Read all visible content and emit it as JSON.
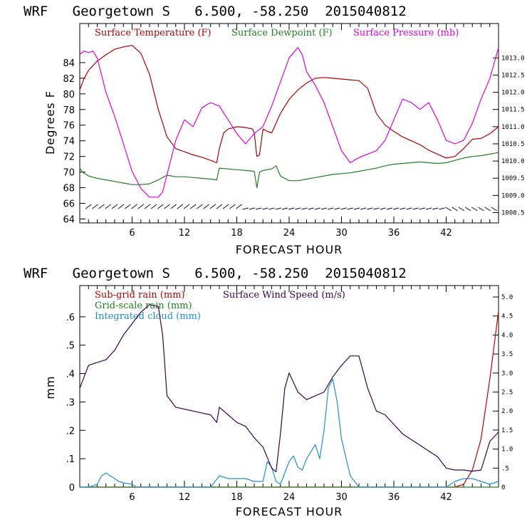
{
  "chart_data": [
    {
      "type": "line",
      "title": "WRF   Georgetown S   6.500, -58.250  2015040812",
      "xlabel": "FORECAST HOUR",
      "ylabel": "Degrees F",
      "xlim": [
        0,
        48
      ],
      "ylim": [
        63.5,
        89
      ],
      "y2lim": [
        1008.2,
        1014
      ],
      "x_ticks": [
        6,
        12,
        18,
        24,
        30,
        36,
        42
      ],
      "y_ticks": [
        64,
        66,
        68,
        70,
        72,
        74,
        76,
        78,
        80,
        82,
        84
      ],
      "y2_ticks": [
        1008.5,
        1009.0,
        1009.5,
        1010.0,
        1010.5,
        1011.0,
        1011.5,
        1012.0,
        1012.5,
        1013.0
      ],
      "y2_tick_labels": [
        "1008.5",
        "1009.0",
        "1009.5",
        "1010.0",
        "1010.5",
        "1011.0",
        "1011.5",
        "1012.0",
        "1012.5",
        "1013.0"
      ],
      "legend": "top",
      "series": [
        {
          "name": "Surface Temperature (F)",
          "color": "#b00000",
          "axis": "left",
          "x": [
            0,
            0.5,
            1,
            2,
            3,
            4,
            5,
            6,
            7,
            8,
            9,
            10,
            11,
            12,
            13,
            14,
            15,
            15.7,
            16,
            16.5,
            17,
            18,
            19,
            19.8,
            20,
            20.3,
            20.6,
            21,
            21.5,
            22,
            23,
            24,
            25,
            26,
            27,
            28,
            29,
            30,
            31,
            32,
            33,
            34,
            35,
            36,
            37,
            38,
            39,
            40,
            41,
            42,
            43,
            44,
            45,
            46,
            47,
            48
          ],
          "y": [
            80.5,
            82,
            83,
            84.2,
            85,
            85.7,
            86,
            86.2,
            85.2,
            82.5,
            78,
            74.5,
            73,
            72.6,
            72.2,
            71.9,
            71.5,
            71.2,
            73,
            75,
            75.5,
            75.8,
            75.7,
            75.5,
            75,
            72,
            72.2,
            75.5,
            75.2,
            75,
            77.5,
            79.3,
            80.5,
            81.4,
            82,
            82.1,
            82,
            81.9,
            81.8,
            81.7,
            80.7,
            77.5,
            76,
            75.2,
            74.5,
            74,
            73.5,
            72.8,
            72.3,
            71.8,
            72,
            73,
            74.2,
            74.3,
            74.9,
            75.8
          ]
        },
        {
          "name": "Surface Dewpoint (F)",
          "color": "#208020",
          "axis": "left",
          "x": [
            0,
            0.3,
            1,
            2,
            3,
            4,
            5,
            6,
            7,
            8,
            9,
            9.5,
            10,
            11,
            12,
            13,
            14,
            15,
            15.7,
            16,
            17,
            18,
            19,
            20,
            20.3,
            20.6,
            21,
            22,
            22.5,
            23,
            24,
            25,
            26,
            27,
            28,
            29,
            30,
            31,
            32,
            33,
            34,
            35,
            36,
            37,
            38,
            39,
            40,
            41,
            42,
            43,
            44,
            45,
            46,
            47,
            48
          ],
          "y": [
            70.5,
            70,
            69.5,
            69.2,
            69,
            68.8,
            68.6,
            68.4,
            68.4,
            68.5,
            69,
            69.3,
            69.6,
            69.4,
            69.4,
            69.3,
            69.2,
            69.1,
            69.0,
            70.5,
            70.4,
            70.3,
            70.2,
            70.1,
            68,
            70,
            70.2,
            70.4,
            70.8,
            69.5,
            68.9,
            68.9,
            69.1,
            69.3,
            69.5,
            69.7,
            69.8,
            69.9,
            70.1,
            70.3,
            70.5,
            70.8,
            71,
            71.1,
            71.2,
            71.3,
            71.2,
            71.1,
            71.2,
            71.5,
            71.8,
            72.0,
            72.1,
            72.3,
            72.5
          ]
        },
        {
          "name": "Surface Pressure (mb)",
          "color": "#e000e0",
          "axis": "right",
          "x": [
            0,
            0.5,
            1,
            1.5,
            2,
            2.5,
            3,
            4,
            5,
            6,
            7,
            8,
            9,
            9.5,
            10,
            11,
            12,
            13,
            14,
            15,
            16,
            17,
            18,
            19,
            20,
            20.5,
            21,
            22,
            23,
            24,
            25,
            25.5,
            26,
            27,
            28,
            29,
            30,
            31,
            32,
            33,
            34,
            35,
            36,
            37,
            38,
            39,
            40,
            41,
            42,
            43,
            44,
            45,
            46,
            47,
            48
          ],
          "y": [
            1013.1,
            1013.2,
            1013.15,
            1013.2,
            1013.0,
            1012.5,
            1012.0,
            1011.3,
            1010.5,
            1009.7,
            1009.2,
            1008.95,
            1008.95,
            1009.1,
            1009.6,
            1010.6,
            1011.2,
            1011.0,
            1011.55,
            1011.7,
            1011.6,
            1011.2,
            1010.8,
            1010.5,
            1010.8,
            1010.9,
            1011.0,
            1011.6,
            1012.3,
            1013.0,
            1013.3,
            1013.1,
            1012.6,
            1012.2,
            1011.7,
            1011.0,
            1010.3,
            1009.95,
            1010.1,
            1010.2,
            1010.3,
            1010.6,
            1011.2,
            1011.8,
            1011.7,
            1011.5,
            1011.7,
            1011.2,
            1010.6,
            1010.5,
            1010.6,
            1011.1,
            1011.8,
            1012.4,
            1013.3
          ]
        }
      ]
    },
    {
      "type": "line",
      "title": "WRF   Georgetown S   6.500, -58.250  2015040812",
      "xlabel": "FORECAST HOUR",
      "ylabel": "mm",
      "xlim": [
        0,
        48
      ],
      "ylim": [
        0,
        0.71
      ],
      "y2lim": [
        0,
        5.3
      ],
      "x_ticks": [
        6,
        12,
        18,
        24,
        30,
        36,
        42
      ],
      "y_ticks": [
        0,
        0.1,
        0.2,
        0.3,
        0.4,
        0.5,
        0.6
      ],
      "y_tick_labels": [
        "0",
        ".1",
        ".2",
        ".3",
        ".4",
        ".5",
        ".6"
      ],
      "y2_ticks": [
        0,
        0.5,
        1.0,
        1.5,
        2.0,
        2.5,
        3.0,
        3.5,
        4.0,
        4.5,
        5.0
      ],
      "y2_tick_labels": [
        "0",
        ".5",
        "1.0",
        "1.5",
        "2.0",
        "2.5",
        "3.0",
        "3.5",
        "4.0",
        "4.5",
        "5.0"
      ],
      "legend": "top-left",
      "series": [
        {
          "name": "Sub-grid rain (mm)",
          "color": "#c00000",
          "axis": "left",
          "x": [
            0,
            42,
            43,
            44,
            45,
            46,
            47,
            48
          ],
          "y": [
            0,
            0,
            0,
            0.01,
            0.06,
            0.17,
            0.38,
            0.62
          ]
        },
        {
          "name": "Grid-scale rain (mm)",
          "color": "#208020",
          "axis": "left",
          "x": [
            0,
            48
          ],
          "y": [
            0,
            0
          ]
        },
        {
          "name": "Integrated cloud (mm)",
          "color": "#1e90d0",
          "axis": "left",
          "x": [
            0,
            1,
            2,
            2.5,
            3,
            3.5,
            4,
            4.5,
            5,
            6,
            6.5,
            7,
            15,
            16,
            17,
            18,
            19,
            20,
            21,
            21.5,
            22,
            22.5,
            23,
            23.5,
            24,
            24.5,
            25,
            25.5,
            26,
            27,
            27.5,
            28,
            28.5,
            29,
            29.5,
            30,
            31,
            32,
            42,
            43,
            44,
            45,
            46,
            47,
            48
          ],
          "y": [
            0,
            0,
            0.01,
            0.04,
            0.05,
            0.04,
            0.03,
            0.02,
            0.015,
            0.01,
            0,
            0,
            0,
            0.04,
            0.03,
            0.03,
            0.03,
            0.02,
            0.02,
            0.09,
            0.07,
            0.02,
            0.01,
            0.05,
            0.09,
            0.11,
            0.07,
            0.06,
            0.1,
            0.15,
            0.1,
            0.2,
            0.35,
            0.38,
            0.3,
            0.17,
            0.04,
            0,
            0,
            0.02,
            0.03,
            0.03,
            0.02,
            0.01,
            0.02
          ]
        },
        {
          "name": "Surface Wind Speed (m/s)",
          "color": "#3a0050",
          "axis": "right",
          "x": [
            0,
            0.5,
            1,
            2,
            3,
            4,
            5,
            6,
            7,
            8,
            9,
            9.5,
            10,
            11,
            12,
            13,
            14,
            15,
            15.7,
            16,
            17,
            18,
            19,
            20,
            21,
            22,
            22.5,
            23,
            23.5,
            24,
            25,
            26,
            27,
            28,
            29,
            30,
            31,
            32,
            33,
            34,
            35,
            36,
            37,
            38,
            39,
            40,
            41,
            42,
            43,
            44,
            45,
            46,
            47,
            48
          ],
          "y": [
            2.6,
            2.9,
            3.2,
            3.28,
            3.35,
            3.6,
            4.0,
            4.3,
            4.6,
            4.8,
            4.75,
            4.0,
            2.4,
            2.1,
            2.05,
            2.0,
            1.95,
            1.9,
            1.7,
            2.1,
            1.9,
            1.7,
            1.6,
            1.3,
            1.05,
            0.5,
            0.4,
            1.4,
            2.6,
            3.0,
            2.5,
            2.3,
            2.4,
            2.5,
            2.9,
            3.2,
            3.45,
            3.45,
            2.6,
            2.0,
            1.9,
            1.65,
            1.4,
            1.25,
            1.1,
            0.95,
            0.8,
            0.5,
            0.45,
            0.45,
            0.42,
            0.45,
            1.2,
            1.45
          ]
        }
      ]
    }
  ]
}
